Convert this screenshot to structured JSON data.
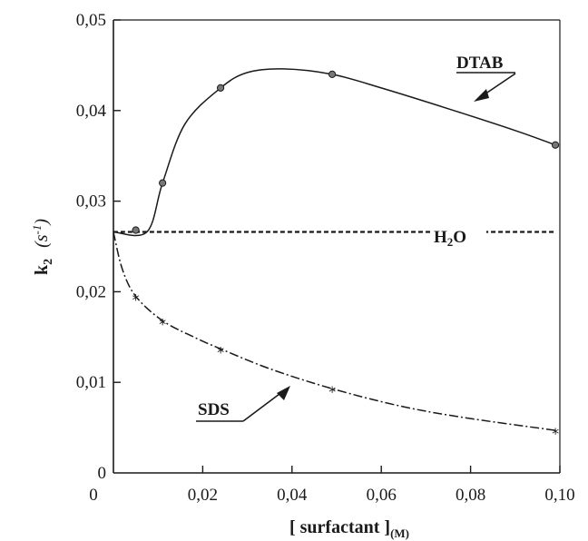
{
  "chart_data": {
    "type": "line",
    "xlabel": "[ surfactant ]",
    "xlabel_sub": "(M)",
    "ylabel_main": "k",
    "ylabel_sub": "2",
    "ylabel_unit": "(s",
    "ylabel_unit_sup": "-1",
    "ylabel_unit_close": ")",
    "xlim": [
      0,
      0.1
    ],
    "ylim": [
      0,
      0.05
    ],
    "xticks": [
      0.02,
      0.04,
      0.06,
      0.08,
      0.1
    ],
    "xtick_labels": [
      "0,02",
      "0,04",
      "0,06",
      "0,08",
      "0,10"
    ],
    "yticks": [
      0,
      0.01,
      0.02,
      0.03,
      0.04,
      0.05
    ],
    "ytick_labels": [
      "0",
      "0,01",
      "0,02",
      "0,03",
      "0,04",
      "0,05"
    ],
    "origin_x_label": "0",
    "grid": false,
    "series": [
      {
        "name": "DTAB",
        "style": "solid",
        "marker": "circle",
        "points": [
          [
            0.005,
            0.0268
          ],
          [
            0.011,
            0.032
          ],
          [
            0.024,
            0.0425
          ],
          [
            0.049,
            0.044
          ],
          [
            0.099,
            0.0362
          ]
        ],
        "curve": [
          [
            0.0,
            0.0266
          ],
          [
            0.0075,
            0.0266
          ],
          [
            0.011,
            0.032
          ],
          [
            0.016,
            0.0385
          ],
          [
            0.024,
            0.0425
          ],
          [
            0.03,
            0.0442
          ],
          [
            0.038,
            0.0446
          ],
          [
            0.049,
            0.044
          ],
          [
            0.06,
            0.0425
          ],
          [
            0.075,
            0.0402
          ],
          [
            0.09,
            0.0378
          ],
          [
            0.099,
            0.0362
          ]
        ]
      },
      {
        "name": "H2O",
        "style": "dashed",
        "marker": "none",
        "curve": [
          [
            0.0,
            0.0266
          ],
          [
            0.099,
            0.0266
          ]
        ]
      },
      {
        "name": "SDS",
        "style": "dashdot",
        "marker": "star",
        "points": [
          [
            0.005,
            0.0195
          ],
          [
            0.011,
            0.0168
          ],
          [
            0.024,
            0.0137
          ],
          [
            0.049,
            0.0093
          ],
          [
            0.099,
            0.0047
          ]
        ],
        "curve": [
          [
            0.0,
            0.0266
          ],
          [
            0.002,
            0.0225
          ],
          [
            0.005,
            0.0195
          ],
          [
            0.011,
            0.0168
          ],
          [
            0.018,
            0.015
          ],
          [
            0.024,
            0.0137
          ],
          [
            0.035,
            0.0115
          ],
          [
            0.049,
            0.0093
          ],
          [
            0.065,
            0.0073
          ],
          [
            0.08,
            0.006
          ],
          [
            0.099,
            0.0047
          ]
        ]
      }
    ],
    "annotations": [
      {
        "text": "DTAB",
        "underline": true
      },
      {
        "text": "H",
        "sub": "2",
        "after": "O"
      },
      {
        "text": "SDS",
        "underline": true
      }
    ]
  }
}
